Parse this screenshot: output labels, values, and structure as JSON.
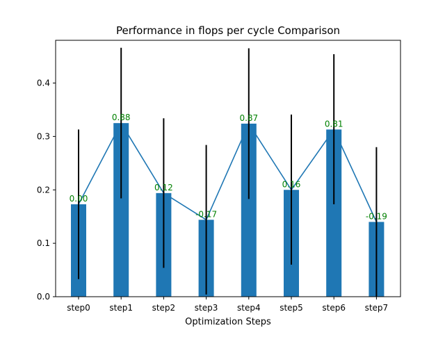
{
  "chart_data": {
    "type": "bar",
    "title": "Performance in flops per cycle Comparison",
    "xlabel": "Optimization Steps",
    "ylabel": "",
    "ylim": [
      0,
      0.48
    ],
    "yticks": [
      0.0,
      0.1,
      0.2,
      0.3,
      0.4
    ],
    "ytick_labels": [
      "0.0",
      "0.1",
      "0.2",
      "0.3",
      "0.4"
    ],
    "grid": false,
    "categories": [
      "step0",
      "step1",
      "step2",
      "step3",
      "step4",
      "step5",
      "step6",
      "step7"
    ],
    "values": [
      0.173,
      0.325,
      0.194,
      0.144,
      0.324,
      0.2,
      0.313,
      0.14
    ],
    "error_low": [
      0.033,
      0.184,
      0.054,
      0.004,
      0.183,
      0.06,
      0.173,
      0.0
    ],
    "error_high": [
      0.313,
      0.466,
      0.334,
      0.284,
      0.465,
      0.341,
      0.454,
      0.28
    ],
    "data_labels": [
      "0.00",
      "0.88",
      "0.12",
      "-0.17",
      "0.87",
      "0.16",
      "0.81",
      "-0.19"
    ],
    "colors": {
      "bar": "#1f77b4",
      "line": "#1f77b4",
      "error_bar": "#000000",
      "data_label": "#008000",
      "axis": "#000000"
    }
  }
}
